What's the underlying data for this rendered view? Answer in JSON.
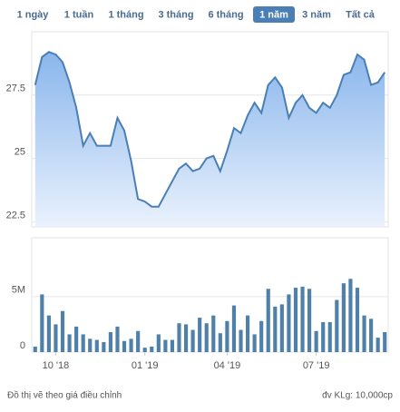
{
  "tabs": [
    "1 ngày",
    "1 tuần",
    "1 tháng",
    "3 tháng",
    "6 tháng",
    "1 năm",
    "3 năm",
    "Tất cả"
  ],
  "selected_tab": 5,
  "chart_data": [
    {
      "type": "area",
      "color": "#4a7fb5",
      "values": [
        27.9,
        29.0,
        29.2,
        29.1,
        28.8,
        28.0,
        27.0,
        25.5,
        26.0,
        25.5,
        25.5,
        25.5,
        26.6,
        26.1,
        24.9,
        23.4,
        23.3,
        23.1,
        23.1,
        23.6,
        24.1,
        24.6,
        24.8,
        24.5,
        24.6,
        25.0,
        25.1,
        24.5,
        25.3,
        26.2,
        26.0,
        26.7,
        27.2,
        26.8,
        27.9,
        28.2,
        27.8,
        26.6,
        27.2,
        27.5,
        27.0,
        26.8,
        27.2,
        27.0,
        27.5,
        28.3,
        28.4,
        29.1,
        28.9,
        27.9,
        28.0,
        28.4
      ],
      "xlim": [
        -0.5,
        51.5
      ],
      "ylim": [
        22.3,
        30
      ],
      "yticks": [
        22.5,
        25,
        27.5
      ],
      "grid": true
    },
    {
      "type": "bar",
      "color": "#4f80aa",
      "values": [
        500000,
        5200000,
        3300000,
        2500000,
        3700000,
        1600000,
        2300000,
        1600000,
        1200000,
        1100000,
        900000,
        1800000,
        2300000,
        1000000,
        1200000,
        1900000,
        400000,
        500000,
        1600000,
        1100000,
        1100000,
        2600000,
        2500000,
        2000000,
        3100000,
        2600000,
        3300000,
        1700000,
        2800000,
        4200000,
        2000000,
        3300000,
        1600000,
        2800000,
        5700000,
        4100000,
        4300000,
        5200000,
        5800000,
        5900000,
        5700000,
        1900000,
        2700000,
        2700000,
        4700000,
        6200000,
        6600000,
        5800000,
        3300000,
        3000000,
        1300000,
        1800000
      ],
      "xlim": [
        -0.5,
        51.5
      ],
      "ylim": [
        0,
        10300000
      ],
      "yticks": [
        0,
        {
          "value": 5000000,
          "label": "5M"
        }
      ],
      "xticks": [
        {
          "value": 3,
          "label": "10 '18"
        },
        {
          "value": 16,
          "label": "01 '19"
        },
        {
          "value": 28,
          "label": "04 '19"
        },
        {
          "value": 41,
          "label": "07 '19"
        }
      ],
      "grid": true
    }
  ],
  "footer": {
    "note": "Đồ thị vẽ theo giá điều chỉnh",
    "unit": "đv KLg: 10,000cp"
  }
}
